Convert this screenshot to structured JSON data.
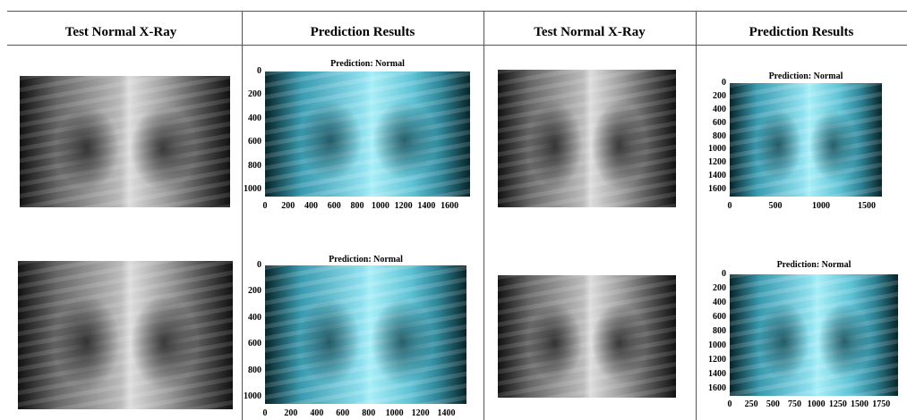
{
  "headers": [
    "Test Normal X-Ray",
    "Prediction Results",
    "Test Normal X-Ray",
    "Prediction Results"
  ],
  "predictions": [
    {
      "title": "Prediction: Normal",
      "yticks": [
        0,
        200,
        400,
        600,
        800,
        1000
      ],
      "xticks": [
        0,
        200,
        400,
        600,
        800,
        1000,
        1200,
        1400,
        1600
      ]
    },
    {
      "title": "Prediction: Normal",
      "yticks": [
        0,
        200,
        400,
        600,
        800,
        1000
      ],
      "xticks": [
        0,
        200,
        400,
        600,
        800,
        1000,
        1200,
        1400
      ]
    },
    {
      "title": "Prediction: Normal",
      "yticks": [
        0,
        200,
        400,
        600,
        800,
        1000,
        1200,
        1400,
        1600
      ],
      "xticks": [
        0,
        500,
        1000,
        1500
      ]
    },
    {
      "title": "Prediction: Normal",
      "yticks": [
        0,
        200,
        400,
        600,
        800,
        1000,
        1200,
        1400,
        1600
      ],
      "xticks": [
        0,
        250,
        500,
        750,
        1000,
        1250,
        1500,
        1750
      ]
    }
  ]
}
